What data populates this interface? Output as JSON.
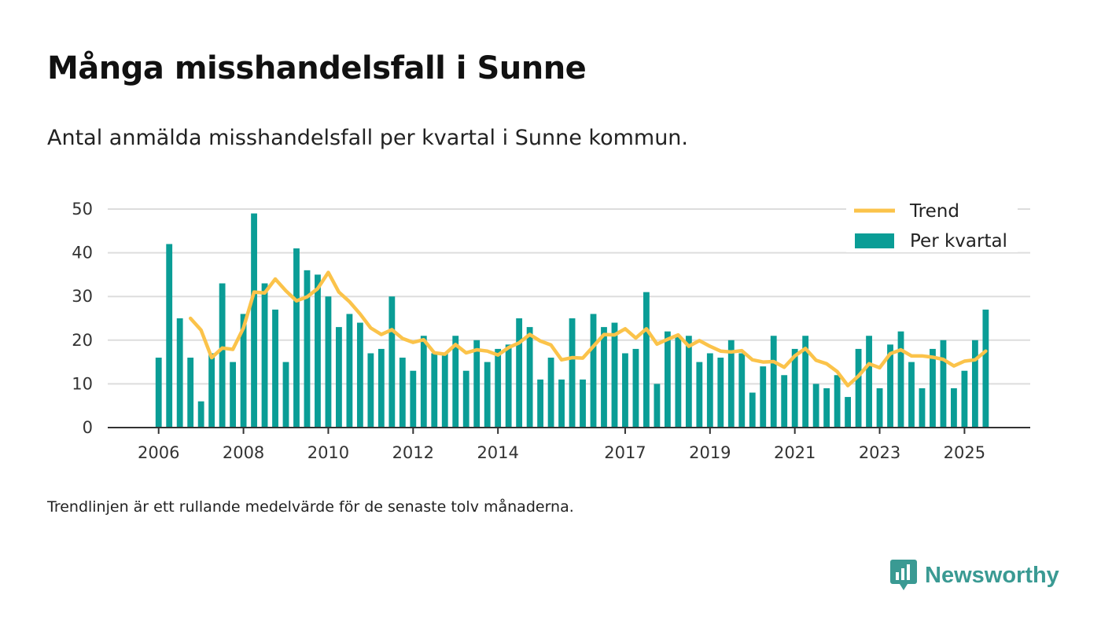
{
  "title": "Många misshandelsfall i Sunne",
  "subtitle": "Antal anmälda misshandelsfall per kvartal i Sunne kommun.",
  "note": "Trendlinjen är ett rullande medelvärde för de senaste tolv månaderna.",
  "brand": {
    "name": "Newsworthy"
  },
  "colors": {
    "bar": "#0a9d96",
    "trend": "#fbc34a",
    "grid": "#dddddd",
    "axis": "#333333"
  },
  "chart_data": {
    "type": "bar",
    "title": "Många misshandelsfall i Sunne",
    "xlabel": "",
    "ylabel": "",
    "ylim": [
      0,
      50
    ],
    "yticks": [
      0,
      10,
      20,
      30,
      40,
      50
    ],
    "x_start": 2006.0,
    "x_step": 0.25,
    "xlim": [
      2004.8,
      2026.55
    ],
    "xticks": [
      {
        "value": 2006,
        "label": "2006"
      },
      {
        "value": 2008,
        "label": "2008"
      },
      {
        "value": 2010,
        "label": "2010"
      },
      {
        "value": 2012,
        "label": "2012"
      },
      {
        "value": 2014,
        "label": "2014"
      },
      {
        "value": 2017,
        "label": "2017"
      },
      {
        "value": 2019,
        "label": "2019"
      },
      {
        "value": 2021,
        "label": "2021"
      },
      {
        "value": 2023,
        "label": "2023"
      },
      {
        "value": 2025,
        "label": "2025"
      }
    ],
    "legend_position": "top-right",
    "series": [
      {
        "name": "Per kvartal",
        "type": "bar",
        "values": [
          16,
          42,
          25,
          16,
          6,
          17,
          33,
          15,
          26,
          49,
          33,
          27,
          15,
          41,
          36,
          35,
          30,
          23,
          26,
          24,
          17,
          18,
          30,
          16,
          13,
          21,
          17,
          17,
          21,
          13,
          20,
          15,
          18,
          19,
          25,
          23,
          11,
          16,
          11,
          25,
          11,
          26,
          23,
          24,
          17,
          18,
          31,
          10,
          22,
          21,
          21,
          15,
          17,
          16,
          20,
          17,
          8,
          14,
          21,
          12,
          18,
          21,
          10,
          9,
          12,
          7,
          18,
          21,
          9,
          19,
          22,
          15,
          9,
          18,
          20,
          9,
          13,
          20,
          27
        ]
      },
      {
        "name": "Trend",
        "type": "line",
        "start_index": 3,
        "values": [
          25,
          22.3,
          16,
          18.2,
          17.9,
          22.8,
          31,
          30.8,
          34,
          31.3,
          29,
          29.9,
          31.8,
          35.5,
          31,
          28.8,
          26,
          22.8,
          21.3,
          22.4,
          20.4,
          19.5,
          20.1,
          17.1,
          16.8,
          19,
          17.1,
          17.8,
          17.5,
          16.6,
          18.3,
          19.4,
          21.3,
          19.8,
          18.9,
          15.5,
          16,
          15.9,
          18.6,
          21.3,
          21.2,
          22.6,
          20.5,
          22.6,
          19.1,
          20.2,
          21.2,
          18.6,
          19.9,
          18.6,
          17.5,
          17.3,
          17.6,
          15.5,
          15,
          15.1,
          13.8,
          16.4,
          18.1,
          15.4,
          14.6,
          12.8,
          9.6,
          11.8,
          14.6,
          13.7,
          16.9,
          17.8,
          16.4,
          16.4,
          16.1,
          15.6,
          14.1,
          15.2,
          15.5,
          17.5
        ]
      }
    ]
  }
}
